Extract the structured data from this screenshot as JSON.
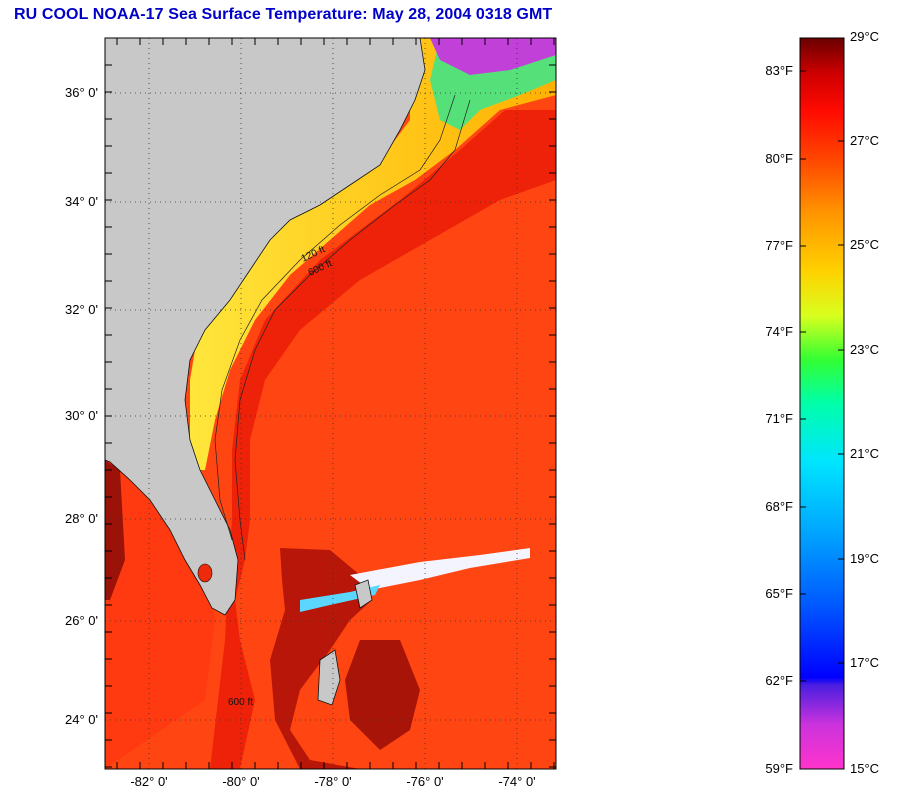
{
  "title": "RU COOL  NOAA-17  Sea Surface Temperature:  May 28, 2004 0318 GMT",
  "map": {
    "lat_labels": [
      "36° 0'",
      "34° 0'",
      "32° 0'",
      "30° 0'",
      "28° 0'",
      "26° 0'",
      "24° 0'"
    ],
    "lon_labels": [
      "-82° 0'",
      "-80° 0'",
      "-78° 0'",
      "-76° 0'",
      "-74° 0'"
    ],
    "contour_labels": [
      "120 ft",
      "600 ft"
    ],
    "colors": {
      "land": "#c8c8c8",
      "ocean_warm": "#ff3c0a",
      "shelf": "#ffd21e",
      "gulf_stream": "#e81a0a"
    }
  },
  "colorbar": {
    "fahrenheit_labels": [
      "83°F",
      "80°F",
      "77°F",
      "74°F",
      "71°F",
      "68°F",
      "65°F",
      "62°F",
      "59°F"
    ],
    "celsius_labels": [
      "29°C",
      "27°C",
      "25°C",
      "23°C",
      "21°C",
      "19°C",
      "17°C",
      "15°C"
    ],
    "celsius_min": 15,
    "celsius_max": 29,
    "stops": [
      "#ff33cc",
      "#7a2ee0",
      "#0000ff",
      "#0055ff",
      "#00aaff",
      "#00e5ff",
      "#00ffcc",
      "#00ff66",
      "#66ff33",
      "#d8ff1e",
      "#ffd200",
      "#ff9600",
      "#ff5a00",
      "#ff1e00",
      "#d40000",
      "#7a0000"
    ]
  }
}
